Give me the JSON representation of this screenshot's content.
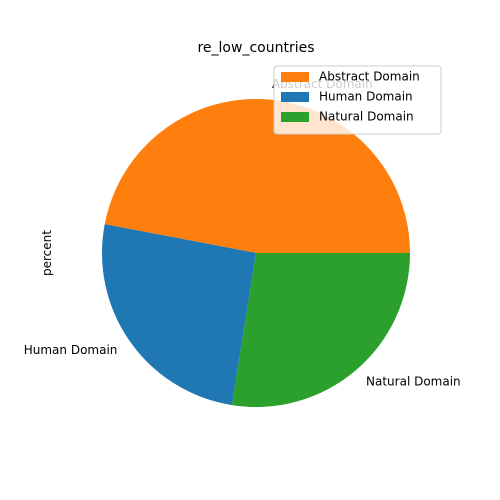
{
  "chart_data": {
    "type": "pie",
    "title": "re_low_countries",
    "ylabel": "percent",
    "slices": [
      {
        "label": "Abstract Domain",
        "value": 47.0,
        "color": "#ff7f0e"
      },
      {
        "label": "Human Domain",
        "value": 25.5,
        "color": "#1f77b4"
      },
      {
        "label": "Natural Domain",
        "value": 27.5,
        "color": "#2ca02c"
      }
    ],
    "start_angle_deg": 0,
    "direction": "counterclockwise",
    "legend_position": "upper right"
  }
}
